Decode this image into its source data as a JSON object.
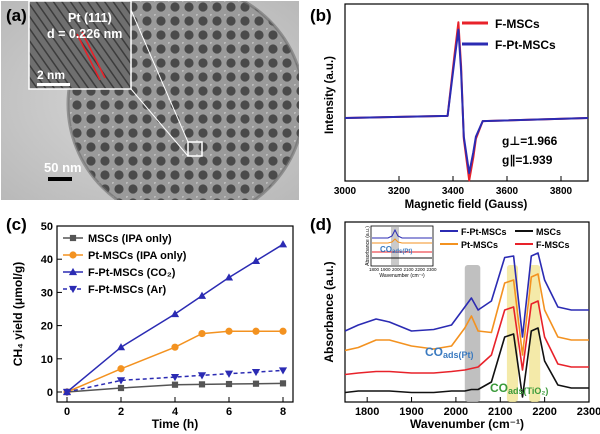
{
  "panel_labels": {
    "a": "(a)",
    "b": "(b)",
    "c": "(c)",
    "d": "(d)"
  },
  "tem": {
    "inset_plane": "Pt (111)",
    "inset_d": "d = 0.226 nm",
    "inset_scale": "2 nm",
    "scale": "50 nm"
  },
  "colors": {
    "red": "#e8222a",
    "blue": "#2b2bb3",
    "gray": "#555555",
    "orange": "#f39220",
    "black": "#111111"
  },
  "chart_data": [
    {
      "type": "line",
      "panel": "b",
      "xlabel": "Magnetic field (Gauss)",
      "ylabel": "Intensity (a.u.)",
      "xlim": [
        3000,
        3900
      ],
      "x_ticks": [
        "3000",
        "3200",
        "3400",
        "3600",
        "3800"
      ],
      "legend_position": "top-right",
      "annotations": [
        "g⊥=1.966",
        "g∥=1.939"
      ],
      "series": [
        {
          "name": "F-MSCs",
          "color": "#e8222a",
          "x": [
            3000,
            3380,
            3405,
            3420,
            3430,
            3440,
            3460,
            3475,
            3485,
            3510,
            3900
          ],
          "y": [
            0,
            0.02,
            0.6,
            0.92,
            0.5,
            -0.2,
            -0.6,
            -0.38,
            -0.2,
            -0.03,
            0
          ]
        },
        {
          "name": "F-Pt-MSCs",
          "color": "#2b2bb3",
          "x": [
            3000,
            3380,
            3405,
            3420,
            3430,
            3440,
            3460,
            3475,
            3485,
            3510,
            3900
          ],
          "y": [
            0,
            0.02,
            0.55,
            0.85,
            0.45,
            -0.18,
            -0.53,
            -0.33,
            -0.18,
            -0.03,
            0
          ]
        }
      ]
    },
    {
      "type": "line",
      "panel": "c",
      "xlabel": "Time (h)",
      "ylabel": "CH₄ yield (μmol/g)",
      "xlim": [
        0,
        8
      ],
      "ylim": [
        0,
        50
      ],
      "x_ticks": [
        "0",
        "2",
        "4",
        "6",
        "8"
      ],
      "y_ticks": [
        "0",
        "10",
        "20",
        "30",
        "40",
        "50"
      ],
      "legend_position": "top-left",
      "series": [
        {
          "name": "MSCs (IPA only)",
          "color": "#555555",
          "marker": "square",
          "x": [
            0,
            2,
            4,
            5,
            6,
            7,
            8
          ],
          "y": [
            0,
            1.2,
            2.2,
            2.3,
            2.4,
            2.5,
            2.6
          ]
        },
        {
          "name": "Pt-MSCs (IPA only)",
          "color": "#f39220",
          "marker": "circle",
          "x": [
            0,
            2,
            4,
            5,
            6,
            7,
            8
          ],
          "y": [
            0,
            7,
            13.5,
            17.6,
            18.3,
            18.3,
            18.3
          ]
        },
        {
          "name": "F-Pt-MSCs (CO₂)",
          "color": "#2b2bb3",
          "marker": "triangle-up",
          "x": [
            0,
            2,
            4,
            5,
            6,
            7,
            8
          ],
          "y": [
            0,
            13.5,
            23.5,
            29,
            34.5,
            39.5,
            44.5
          ]
        },
        {
          "name": "F-Pt-MSCs (Ar)",
          "color": "#2b2bb3",
          "marker": "triangle-down",
          "dashed": true,
          "x": [
            0,
            2,
            4,
            5,
            6,
            7,
            8
          ],
          "y": [
            0,
            3.5,
            4.5,
            5,
            5.5,
            6,
            6.5
          ]
        }
      ]
    },
    {
      "type": "line",
      "panel": "d",
      "xlabel": "Wavenumber (cm⁻¹)",
      "ylabel": "Absorbance (a.u.)",
      "xlim": [
        1750,
        2300
      ],
      "x_ticks": [
        "1800",
        "1900",
        "2000",
        "2100",
        "2200",
        "2300"
      ],
      "legend_position": "top-right",
      "annotations": [
        "CO",
        "ads(Pt)",
        "CO",
        "ads(TiO₂)"
      ],
      "highlight_bands": [
        [
          2020,
          2055
        ],
        [
          2115,
          2140
        ],
        [
          2165,
          2190
        ]
      ],
      "series": [
        {
          "name": "F-Pt-MSCs",
          "color": "#2b2bb3",
          "x": [
            1750,
            1780,
            1820,
            1850,
            1900,
            1950,
            1990,
            2020,
            2035,
            2050,
            2080,
            2110,
            2130,
            2150,
            2170,
            2185,
            2200,
            2230,
            2260,
            2300
          ],
          "y": [
            0.46,
            0.5,
            0.54,
            0.52,
            0.46,
            0.47,
            0.5,
            0.62,
            0.68,
            0.6,
            0.66,
            0.95,
            0.96,
            0.42,
            0.96,
            0.98,
            0.8,
            0.62,
            0.6,
            0.6
          ]
        },
        {
          "name": "Pt-MSCs",
          "color": "#f39220",
          "x": [
            1750,
            1780,
            1820,
            1850,
            1900,
            1950,
            1990,
            2020,
            2035,
            2050,
            2080,
            2110,
            2130,
            2150,
            2170,
            2185,
            2200,
            2230,
            2260,
            2300
          ],
          "y": [
            0.33,
            0.35,
            0.4,
            0.4,
            0.36,
            0.34,
            0.36,
            0.48,
            0.56,
            0.46,
            0.45,
            0.78,
            0.8,
            0.3,
            0.82,
            0.84,
            0.6,
            0.42,
            0.4,
            0.4
          ]
        },
        {
          "name": "F-MSCs",
          "color": "#e8222a",
          "x": [
            1750,
            1780,
            1820,
            1850,
            1900,
            1950,
            1990,
            2020,
            2035,
            2050,
            2080,
            2110,
            2130,
            2150,
            2170,
            2185,
            2200,
            2230,
            2260,
            2300
          ],
          "y": [
            0.17,
            0.18,
            0.19,
            0.19,
            0.18,
            0.18,
            0.19,
            0.2,
            0.21,
            0.22,
            0.3,
            0.6,
            0.62,
            0.2,
            0.64,
            0.66,
            0.42,
            0.24,
            0.22,
            0.22
          ]
        },
        {
          "name": "MSCs",
          "color": "#111111",
          "x": [
            1750,
            1780,
            1820,
            1850,
            1900,
            1950,
            1990,
            2020,
            2035,
            2050,
            2080,
            2110,
            2130,
            2150,
            2170,
            2185,
            2200,
            2230,
            2260,
            2300
          ],
          "y": [
            0.05,
            0.06,
            0.06,
            0.06,
            0.05,
            0.05,
            0.06,
            0.06,
            0.07,
            0.07,
            0.12,
            0.42,
            0.44,
            0.02,
            0.46,
            0.48,
            0.26,
            0.1,
            0.08,
            0.08
          ]
        }
      ],
      "inset": {
        "ylabel": "Absorbance (a.u.)",
        "xlabel": "Wavenumber (cm⁻¹)",
        "x_ticks": [
          "1800",
          "1900",
          "2000",
          "2100",
          "2200",
          "2300"
        ],
        "label": "CO",
        "label_sub": "ads(Pt)"
      }
    }
  ]
}
